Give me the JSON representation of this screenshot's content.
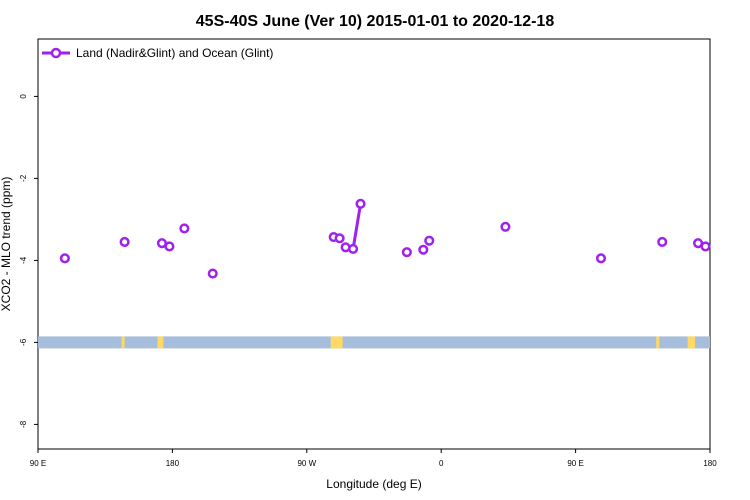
{
  "chart_data": {
    "type": "line",
    "title": "45S-40S June (Ver 10)   2015-01-01 to 2020-12-18",
    "xlabel": "Longitude (deg E)",
    "ylabel": "XCO2 - MLO trend (ppm)",
    "xlim": [
      90,
      540
    ],
    "ylim": [
      -8.6,
      1.4
    ],
    "x_ticks": [
      {
        "value": 90,
        "label": "90 E"
      },
      {
        "value": 180,
        "label": "180"
      },
      {
        "value": 270,
        "label": "90 W"
      },
      {
        "value": 360,
        "label": "0"
      },
      {
        "value": 450,
        "label": "90 E"
      },
      {
        "value": 540,
        "label": "180"
      }
    ],
    "y_ticks": [
      {
        "value": 0,
        "label": "0"
      },
      {
        "value": -2,
        "label": "-2"
      },
      {
        "value": -4,
        "label": "-4"
      },
      {
        "value": -6,
        "label": "-6"
      },
      {
        "value": -8,
        "label": "-8"
      }
    ],
    "legend_position": "top-left",
    "series": [
      {
        "name": "Land (Nadir&Glint) and Ocean (Glint)",
        "color": "#a020f0",
        "points": [
          {
            "x": 108,
            "y": -3.95
          },
          {
            "x": 148,
            "y": -3.55
          },
          {
            "x": 173,
            "y": -3.58
          },
          {
            "x": 178,
            "y": -3.66
          },
          {
            "x": 188,
            "y": -3.22
          },
          {
            "x": 207,
            "y": -4.32
          },
          {
            "x": 288,
            "y": -3.43
          },
          {
            "x": 292,
            "y": -3.46
          },
          {
            "x": 296,
            "y": -3.68,
            "connect_to_next": true
          },
          {
            "x": 301,
            "y": -3.72,
            "connect_to_next": true
          },
          {
            "x": 306,
            "y": -2.62
          },
          {
            "x": 337,
            "y": -3.8
          },
          {
            "x": 348,
            "y": -3.74
          },
          {
            "x": 352,
            "y": -3.52
          },
          {
            "x": 403,
            "y": -3.18
          },
          {
            "x": 467,
            "y": -3.95
          },
          {
            "x": 508,
            "y": -3.55
          },
          {
            "x": 532,
            "y": -3.58
          },
          {
            "x": 537,
            "y": -3.66
          }
        ]
      }
    ],
    "land_ocean_strip": {
      "y_center": -6.0,
      "ocean_color": "#a6bddb",
      "land_color": "#ffd966",
      "land_segments": [
        [
          146,
          148
        ],
        [
          170,
          174
        ],
        [
          286,
          294
        ],
        [
          504,
          506
        ],
        [
          525,
          530
        ]
      ]
    }
  }
}
